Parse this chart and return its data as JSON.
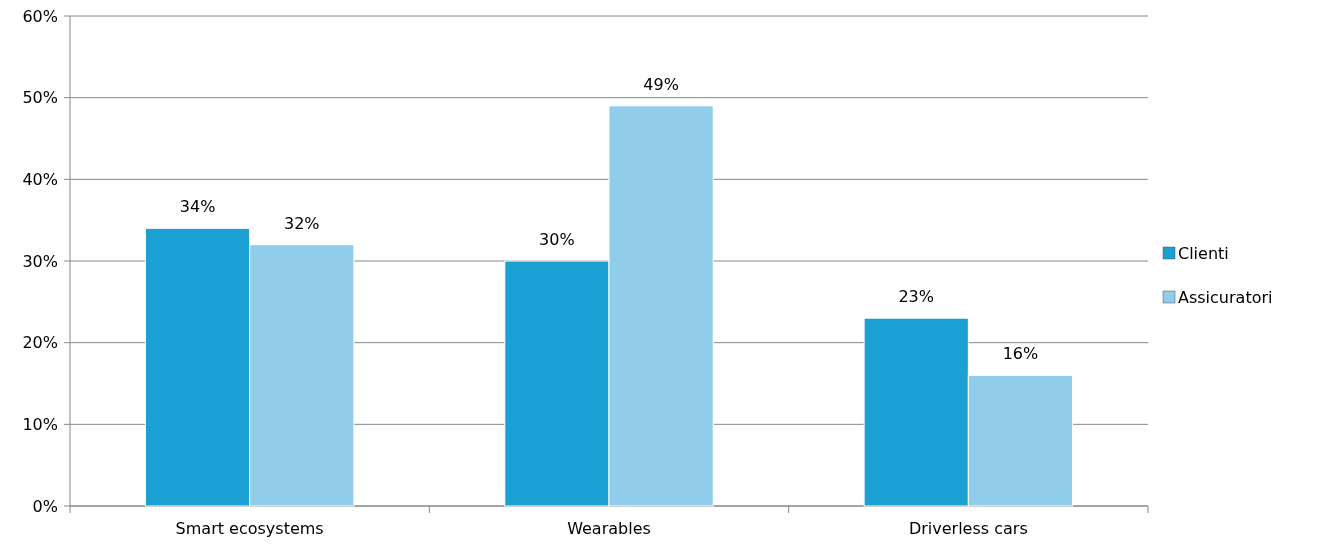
{
  "chart_data": {
    "type": "bar",
    "categories": [
      "Smart ecosystems",
      "Wearables",
      "Driverless cars"
    ],
    "series": [
      {
        "name": "Clienti",
        "color": "#1aa0d2",
        "values": [
          34,
          30,
          23
        ],
        "value_labels": [
          "34%",
          "30%",
          "23%"
        ]
      },
      {
        "name": "Assicuratori",
        "color": "#8fcdeb",
        "values": [
          32,
          49,
          16
        ],
        "value_labels": [
          "32%",
          "49%",
          "16%"
        ]
      }
    ],
    "ylim": [
      0,
      60
    ],
    "yticks": [
      {
        "value": 0,
        "label": "0%"
      },
      {
        "value": 10,
        "label": "10%"
      },
      {
        "value": 20,
        "label": "20%"
      },
      {
        "value": 30,
        "label": "30%"
      },
      {
        "value": 40,
        "label": "40%"
      },
      {
        "value": 50,
        "label": "50%"
      },
      {
        "value": 60,
        "label": "60%"
      }
    ],
    "grid": "y",
    "legend": "right"
  }
}
